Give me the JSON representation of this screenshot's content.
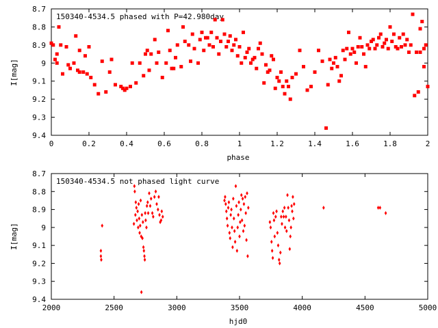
{
  "colors": {
    "point": "#ff0000",
    "axis": "#000000",
    "background": "#ffffff"
  },
  "chart_data": [
    {
      "type": "scatter",
      "title": "150340-4534.5 phased with P=42.980day",
      "xlabel": "phase",
      "ylabel": "I[mag]",
      "xlim": [
        0,
        2
      ],
      "ylim": [
        8.7,
        9.4
      ],
      "y_inverted": true,
      "xticks": [
        "0",
        "0.2",
        "0.4",
        "0.6",
        "0.8",
        "1",
        "1.2",
        "1.4",
        "1.6",
        "1.8",
        "2"
      ],
      "xtick_values": [
        0,
        0.2,
        0.4,
        0.6,
        0.8,
        1,
        1.2,
        1.4,
        1.6,
        1.8,
        2
      ],
      "yticks": [
        "8.7",
        "8.8",
        "8.9",
        "9",
        "9.1",
        "9.2",
        "9.3",
        "9.4"
      ],
      "ytick_values": [
        8.7,
        8.8,
        8.9,
        9.0,
        9.1,
        9.2,
        9.3,
        9.4
      ],
      "points": [
        [
          0.0,
          8.89
        ],
        [
          0.01,
          8.9
        ],
        [
          0.02,
          8.98
        ],
        [
          0.03,
          8.95
        ],
        [
          0.03,
          9.0
        ],
        [
          0.04,
          8.8
        ],
        [
          0.05,
          8.9
        ],
        [
          0.06,
          9.06
        ],
        [
          0.08,
          8.91
        ],
        [
          0.09,
          9.01
        ],
        [
          0.1,
          9.03
        ],
        [
          0.12,
          9.0
        ],
        [
          0.13,
          8.85
        ],
        [
          0.14,
          9.04
        ],
        [
          0.15,
          9.05
        ],
        [
          0.15,
          8.93
        ],
        [
          0.17,
          9.05
        ],
        [
          0.18,
          8.96
        ],
        [
          0.19,
          9.06
        ],
        [
          0.2,
          8.91
        ],
        [
          0.21,
          9.08
        ],
        [
          0.23,
          9.12
        ],
        [
          0.25,
          9.17
        ],
        [
          0.27,
          8.99
        ],
        [
          0.29,
          9.16
        ],
        [
          0.31,
          9.05
        ],
        [
          0.32,
          8.98
        ],
        [
          0.34,
          9.12
        ],
        [
          0.37,
          9.13
        ],
        [
          0.38,
          9.14
        ],
        [
          0.39,
          9.15
        ],
        [
          0.4,
          9.14
        ],
        [
          0.42,
          9.13
        ],
        [
          0.43,
          9.0
        ],
        [
          0.45,
          9.11
        ],
        [
          0.47,
          9.0
        ],
        [
          0.49,
          9.07
        ],
        [
          0.5,
          8.95
        ],
        [
          0.51,
          8.93
        ],
        [
          0.52,
          9.04
        ],
        [
          0.53,
          8.95
        ],
        [
          0.55,
          8.87
        ],
        [
          0.56,
          9.0
        ],
        [
          0.57,
          8.94
        ],
        [
          0.59,
          9.08
        ],
        [
          0.61,
          9.0
        ],
        [
          0.62,
          8.82
        ],
        [
          0.63,
          8.93
        ],
        [
          0.64,
          9.03
        ],
        [
          0.65,
          9.03
        ],
        [
          0.66,
          8.97
        ],
        [
          0.67,
          8.9
        ],
        [
          0.69,
          9.02
        ],
        [
          0.7,
          8.8
        ],
        [
          0.71,
          8.88
        ],
        [
          0.73,
          8.9
        ],
        [
          0.74,
          8.99
        ],
        [
          0.75,
          8.84
        ],
        [
          0.76,
          8.92
        ],
        [
          0.78,
          9.0
        ],
        [
          0.79,
          8.87
        ],
        [
          0.8,
          8.83
        ],
        [
          0.81,
          8.93
        ],
        [
          0.82,
          8.86
        ],
        [
          0.83,
          8.86
        ],
        [
          0.84,
          8.9
        ],
        [
          0.85,
          8.83
        ],
        [
          0.86,
          8.91
        ],
        [
          0.87,
          8.76
        ],
        [
          0.88,
          8.86
        ],
        [
          0.89,
          8.95
        ],
        [
          0.9,
          8.88
        ],
        [
          0.91,
          8.76
        ],
        [
          0.92,
          8.84
        ],
        [
          0.93,
          8.91
        ],
        [
          0.94,
          8.88
        ],
        [
          0.95,
          8.85
        ],
        [
          0.96,
          8.93
        ],
        [
          0.97,
          8.9
        ],
        [
          0.98,
          8.87
        ],
        [
          0.99,
          8.96
        ],
        [
          1.0,
          8.91
        ],
        [
          1.01,
          9.0
        ],
        [
          1.02,
          8.83
        ],
        [
          1.03,
          8.97
        ],
        [
          1.04,
          8.94
        ],
        [
          1.05,
          8.92
        ],
        [
          1.06,
          9.0
        ],
        [
          1.07,
          8.98
        ],
        [
          1.08,
          8.97
        ],
        [
          1.09,
          9.03
        ],
        [
          1.1,
          8.92
        ],
        [
          1.11,
          8.89
        ],
        [
          1.12,
          8.95
        ],
        [
          1.13,
          9.11
        ],
        [
          1.14,
          9.01
        ],
        [
          1.15,
          9.05
        ],
        [
          1.16,
          9.04
        ],
        [
          1.17,
          8.96
        ],
        [
          1.18,
          8.98
        ],
        [
          1.19,
          9.14
        ],
        [
          1.2,
          9.08
        ],
        [
          1.21,
          9.1
        ],
        [
          1.22,
          9.05
        ],
        [
          1.23,
          9.13
        ],
        [
          1.24,
          9.17
        ],
        [
          1.25,
          9.1
        ],
        [
          1.26,
          9.13
        ],
        [
          1.27,
          9.2
        ],
        [
          1.28,
          9.08
        ],
        [
          1.3,
          9.06
        ],
        [
          1.32,
          8.93
        ],
        [
          1.34,
          9.02
        ],
        [
          1.36,
          9.15
        ],
        [
          1.38,
          9.13
        ],
        [
          1.4,
          9.05
        ],
        [
          1.42,
          8.93
        ],
        [
          1.44,
          8.99
        ],
        [
          1.46,
          9.36
        ],
        [
          1.47,
          9.12
        ],
        [
          1.48,
          8.98
        ],
        [
          1.49,
          9.03
        ],
        [
          1.5,
          9.0
        ],
        [
          1.51,
          8.97
        ],
        [
          1.52,
          9.02
        ],
        [
          1.53,
          9.1
        ],
        [
          1.54,
          9.07
        ],
        [
          1.55,
          8.93
        ],
        [
          1.56,
          8.98
        ],
        [
          1.57,
          8.92
        ],
        [
          1.58,
          8.83
        ],
        [
          1.59,
          8.95
        ],
        [
          1.6,
          8.92
        ],
        [
          1.61,
          8.94
        ],
        [
          1.62,
          9.0
        ],
        [
          1.63,
          8.91
        ],
        [
          1.64,
          8.86
        ],
        [
          1.65,
          8.91
        ],
        [
          1.66,
          8.95
        ],
        [
          1.67,
          9.02
        ],
        [
          1.68,
          8.9
        ],
        [
          1.69,
          8.92
        ],
        [
          1.7,
          8.88
        ],
        [
          1.71,
          8.87
        ],
        [
          1.72,
          8.92
        ],
        [
          1.73,
          8.9
        ],
        [
          1.74,
          8.86
        ],
        [
          1.75,
          8.84
        ],
        [
          1.76,
          8.91
        ],
        [
          1.77,
          8.89
        ],
        [
          1.78,
          8.87
        ],
        [
          1.79,
          8.92
        ],
        [
          1.8,
          8.8
        ],
        [
          1.81,
          8.88
        ],
        [
          1.82,
          8.84
        ],
        [
          1.83,
          8.91
        ],
        [
          1.84,
          8.92
        ],
        [
          1.85,
          8.86
        ],
        [
          1.86,
          8.91
        ],
        [
          1.87,
          8.84
        ],
        [
          1.88,
          8.9
        ],
        [
          1.89,
          8.87
        ],
        [
          1.9,
          8.94
        ],
        [
          1.91,
          8.9
        ],
        [
          1.92,
          8.73
        ],
        [
          1.93,
          9.18
        ],
        [
          1.94,
          8.94
        ],
        [
          1.95,
          9.16
        ],
        [
          1.96,
          8.94
        ],
        [
          1.97,
          8.77
        ],
        [
          1.98,
          9.02
        ],
        [
          1.99,
          8.9
        ],
        [
          2.0,
          9.13
        ],
        [
          1.98,
          8.92
        ],
        [
          1.96,
          8.81
        ]
      ]
    },
    {
      "type": "scatter",
      "title": "150340-4534.5 not phased light curve",
      "xlabel": "hjd0",
      "ylabel": "I[mag]",
      "xlim": [
        2000,
        5000
      ],
      "ylim": [
        8.7,
        9.4
      ],
      "y_inverted": true,
      "xticks": [
        "2000",
        "2500",
        "3000",
        "3500",
        "4000",
        "4500",
        "5000"
      ],
      "xtick_values": [
        2000,
        2500,
        3000,
        3500,
        4000,
        4500,
        5000
      ],
      "yticks": [
        "8.7",
        "8.8",
        "8.9",
        "9",
        "9.1",
        "9.2",
        "9.3",
        "9.4"
      ],
      "ytick_values": [
        8.7,
        8.8,
        8.9,
        9.0,
        9.1,
        9.2,
        9.3,
        9.4
      ],
      "points": [
        [
          2395,
          9.13
        ],
        [
          2395,
          9.16
        ],
        [
          2398,
          9.18
        ],
        [
          2405,
          8.99
        ],
        [
          2658,
          8.98
        ],
        [
          2662,
          8.77
        ],
        [
          2665,
          8.8
        ],
        [
          2670,
          8.93
        ],
        [
          2673,
          8.86
        ],
        [
          2678,
          8.89
        ],
        [
          2682,
          8.96
        ],
        [
          2688,
          8.91
        ],
        [
          2692,
          9.0
        ],
        [
          2696,
          8.87
        ],
        [
          2700,
          8.95
        ],
        [
          2704,
          9.03
        ],
        [
          2708,
          8.99
        ],
        [
          2712,
          8.85
        ],
        [
          2716,
          9.05
        ],
        [
          2718,
          9.36
        ],
        [
          2722,
          8.93
        ],
        [
          2726,
          9.06
        ],
        [
          2730,
          8.97
        ],
        [
          2734,
          9.11
        ],
        [
          2738,
          9.13
        ],
        [
          2742,
          9.16
        ],
        [
          2745,
          9.18
        ],
        [
          2748,
          8.92
        ],
        [
          2752,
          8.96
        ],
        [
          2758,
          9.0
        ],
        [
          2762,
          8.88
        ],
        [
          2768,
          8.86
        ],
        [
          2772,
          8.92
        ],
        [
          2780,
          8.81
        ],
        [
          2788,
          8.88
        ],
        [
          2795,
          8.84
        ],
        [
          2805,
          8.92
        ],
        [
          2812,
          8.94
        ],
        [
          2822,
          8.83
        ],
        [
          2832,
          8.8
        ],
        [
          2840,
          8.87
        ],
        [
          2850,
          8.9
        ],
        [
          2856,
          8.83
        ],
        [
          2862,
          8.93
        ],
        [
          2868,
          8.97
        ],
        [
          2875,
          8.96
        ],
        [
          2880,
          8.91
        ],
        [
          2888,
          8.94
        ],
        [
          3380,
          8.85
        ],
        [
          3385,
          8.83
        ],
        [
          3390,
          8.87
        ],
        [
          3395,
          8.91
        ],
        [
          3400,
          8.95
        ],
        [
          3405,
          8.99
        ],
        [
          3410,
          8.89
        ],
        [
          3415,
          8.86
        ],
        [
          3420,
          9.03
        ],
        [
          3425,
          9.06
        ],
        [
          3430,
          8.93
        ],
        [
          3435,
          8.9
        ],
        [
          3440,
          9.0
        ],
        [
          3445,
          9.11
        ],
        [
          3450,
          8.84
        ],
        [
          3455,
          8.95
        ],
        [
          3460,
          9.02
        ],
        [
          3465,
          9.08
        ],
        [
          3470,
          8.77
        ],
        [
          3475,
          8.88
        ],
        [
          3480,
          9.13
        ],
        [
          3485,
          9.0
        ],
        [
          3490,
          8.93
        ],
        [
          3495,
          8.86
        ],
        [
          3500,
          9.05
        ],
        [
          3505,
          8.97
        ],
        [
          3510,
          8.9
        ],
        [
          3515,
          8.82
        ],
        [
          3520,
          8.96
        ],
        [
          3525,
          8.84
        ],
        [
          3530,
          9.02
        ],
        [
          3535,
          8.87
        ],
        [
          3540,
          8.99
        ],
        [
          3545,
          8.83
        ],
        [
          3550,
          8.92
        ],
        [
          3555,
          9.07
        ],
        [
          3560,
          8.81
        ],
        [
          3565,
          9.16
        ],
        [
          3570,
          8.89
        ],
        [
          3742,
          8.97
        ],
        [
          3748,
          9.0
        ],
        [
          3755,
          9.08
        ],
        [
          3760,
          9.13
        ],
        [
          3765,
          9.17
        ],
        [
          3770,
          8.92
        ],
        [
          3775,
          8.96
        ],
        [
          3780,
          9.05
        ],
        [
          3788,
          8.94
        ],
        [
          3795,
          8.91
        ],
        [
          3802,
          9.03
        ],
        [
          3808,
          9.1
        ],
        [
          3815,
          9.18
        ],
        [
          3820,
          9.2
        ],
        [
          3826,
          9.14
        ],
        [
          3832,
          8.94
        ],
        [
          3838,
          8.98
        ],
        [
          3845,
          8.91
        ],
        [
          3852,
          8.94
        ],
        [
          3858,
          8.89
        ],
        [
          3863,
          9.0
        ],
        [
          3870,
          8.94
        ],
        [
          3875,
          9.02
        ],
        [
          3882,
          8.82
        ],
        [
          3888,
          8.89
        ],
        [
          3895,
          8.96
        ],
        [
          3900,
          9.12
        ],
        [
          3905,
          9.05
        ],
        [
          3910,
          9.0
        ],
        [
          3915,
          8.88
        ],
        [
          3920,
          8.91
        ],
        [
          3925,
          8.83
        ],
        [
          3930,
          8.95
        ],
        [
          3935,
          8.87
        ],
        [
          4170,
          8.89
        ],
        [
          4605,
          8.89
        ],
        [
          4620,
          8.89
        ],
        [
          4665,
          8.92
        ]
      ]
    }
  ]
}
